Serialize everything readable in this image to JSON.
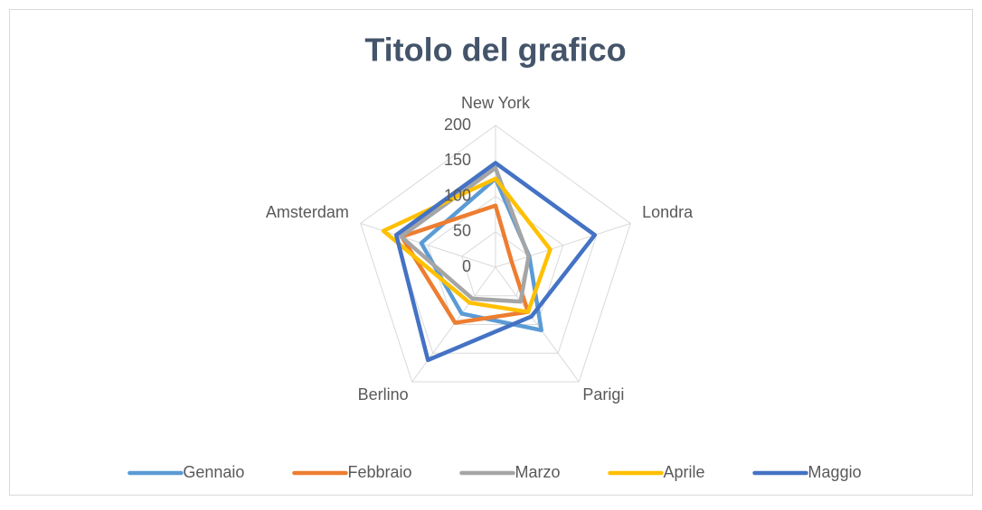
{
  "chart_data": {
    "type": "radar",
    "title": "Titolo del grafico",
    "categories": [
      "New York",
      "Londra",
      "Parigi",
      "Berlino",
      "Amsterdam"
    ],
    "ylim": [
      0,
      200
    ],
    "yticks": [
      0,
      50,
      100,
      150,
      200
    ],
    "grid": true,
    "legend": "bottom",
    "series": [
      {
        "name": "Gennaio",
        "color": "#5b9bd5",
        "values": [
          125,
          50,
          110,
          81,
          110
        ]
      },
      {
        "name": "Febbraio",
        "color": "#ed7d31",
        "values": [
          87,
          24,
          78,
          97,
          139
        ]
      },
      {
        "name": "Marzo",
        "color": "#a5a5a5",
        "values": [
          140,
          49,
          60,
          55,
          140
        ]
      },
      {
        "name": "Aprile",
        "color": "#ffc000",
        "values": [
          125,
          81,
          78,
          62,
          166
        ]
      },
      {
        "name": "Maggio",
        "color": "#4472c4",
        "values": [
          147,
          147,
          86,
          162,
          147
        ]
      }
    ]
  }
}
